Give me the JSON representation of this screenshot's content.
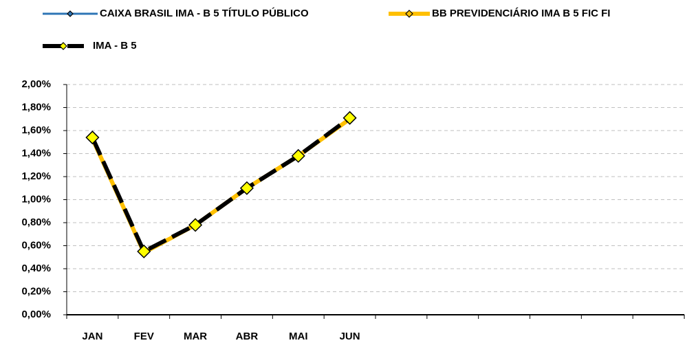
{
  "chart_data": {
    "type": "line",
    "categories": [
      "JAN",
      "FEV",
      "MAR",
      "ABR",
      "MAI",
      "JUN",
      null,
      null,
      null,
      null,
      null,
      null
    ],
    "series": [
      {
        "name": "CAIXA BRASIL IMA - B 5 TÍTULO PÚBLICO",
        "color": "#2e75b6",
        "values": [
          1.53,
          0.55,
          0.78,
          1.09,
          1.37,
          1.7,
          null,
          null,
          null,
          null,
          null,
          null
        ]
      },
      {
        "name": "BB PREVIDENCIÁRIO IMA B 5 FIC FI",
        "color": "#ffc000",
        "values": [
          1.53,
          0.54,
          0.78,
          1.1,
          1.38,
          1.7,
          null,
          null,
          null,
          null,
          null,
          null
        ]
      },
      {
        "name": "IMA - B 5",
        "color": "#000000",
        "values": [
          1.54,
          0.55,
          0.78,
          1.1,
          1.38,
          1.71,
          null,
          null,
          null,
          null,
          null,
          null
        ]
      }
    ],
    "ylim": [
      0,
      2
    ],
    "yticks": [
      {
        "value": 0,
        "label": "0,00%"
      },
      {
        "value": 0.2,
        "label": "0,20%"
      },
      {
        "value": 0.4,
        "label": "0,40%"
      },
      {
        "value": 0.6,
        "label": "0,60%"
      },
      {
        "value": 0.8,
        "label": "0,80%"
      },
      {
        "value": 1.0,
        "label": "1,00%"
      },
      {
        "value": 1.2,
        "label": "1,20%"
      },
      {
        "value": 1.4,
        "label": "1,40%"
      },
      {
        "value": 1.6,
        "label": "1,60%"
      },
      {
        "value": 1.8,
        "label": "1,80%"
      },
      {
        "value": 2.0,
        "label": "2,00%"
      }
    ],
    "grid": true
  }
}
